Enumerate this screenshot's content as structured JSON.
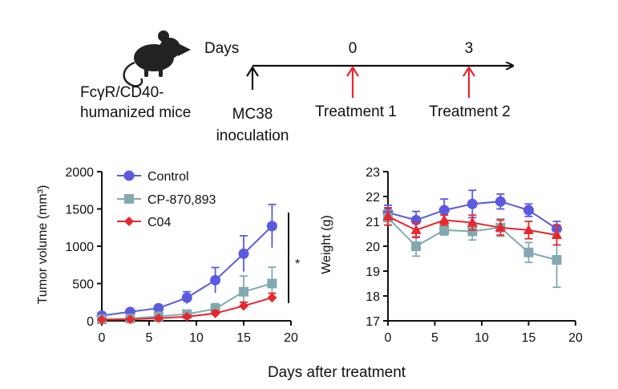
{
  "schematic": {
    "mouse_label_line1": "FcγR/CD40-",
    "mouse_label_line2": "humanized mice",
    "days_label": "Days",
    "day0": "0",
    "day3": "3",
    "inoculation_line1": "MC38",
    "inoculation_line2": "inoculation",
    "treatment1": "Treatment 1",
    "treatment2": "Treatment 2",
    "colors": {
      "black": "#111111",
      "red": "#e8262c"
    }
  },
  "shared_xlabel": "Days after treatment",
  "chart_data": [
    {
      "type": "line",
      "title": "",
      "xlabel": "",
      "ylabel": "Tumor volume (mm³)",
      "xlim": [
        0,
        20
      ],
      "ylim": [
        0,
        2000
      ],
      "xticks": [
        0,
        5,
        10,
        15,
        20
      ],
      "yticks": [
        0,
        500,
        1000,
        1500,
        2000
      ],
      "legend": "top-left",
      "x": [
        0,
        3,
        6,
        9,
        12,
        15,
        18
      ],
      "series": [
        {
          "name": "Control",
          "color": "#5a5ae0",
          "marker": "circle",
          "values": [
            70,
            120,
            170,
            310,
            545,
            900,
            1270
          ],
          "err": [
            20,
            30,
            40,
            80,
            170,
            240,
            290
          ]
        },
        {
          "name": "CP-870,893",
          "color": "#82a9b1",
          "marker": "square",
          "values": [
            20,
            30,
            60,
            90,
            160,
            390,
            500
          ],
          "err": [
            10,
            15,
            25,
            40,
            70,
            210,
            220
          ]
        },
        {
          "name": "C04",
          "color": "#e8262c",
          "marker": "diamond",
          "values": [
            15,
            20,
            35,
            55,
            100,
            200,
            310
          ],
          "err": [
            8,
            10,
            15,
            20,
            35,
            50,
            60
          ]
        }
      ],
      "significance": "*"
    },
    {
      "type": "line",
      "title": "",
      "xlabel": "",
      "ylabel": "Weight (g)",
      "xlim": [
        0,
        20
      ],
      "ylim": [
        17,
        23
      ],
      "xticks": [
        0,
        5,
        10,
        15,
        20
      ],
      "yticks": [
        17,
        18,
        19,
        20,
        21,
        22,
        23
      ],
      "x": [
        0,
        3,
        6,
        9,
        12,
        15,
        18
      ],
      "series": [
        {
          "name": "Control",
          "color": "#5a5ae0",
          "marker": "circle",
          "values": [
            21.35,
            21.05,
            21.45,
            21.7,
            21.8,
            21.45,
            20.7
          ],
          "err": [
            0.3,
            0.35,
            0.45,
            0.55,
            0.3,
            0.25,
            0.3
          ]
        },
        {
          "name": "CP-870,893",
          "color": "#82a9b1",
          "marker": "square",
          "values": [
            21.15,
            20.0,
            20.65,
            20.6,
            20.75,
            19.75,
            19.45
          ],
          "err": [
            0.3,
            0.4,
            0.2,
            0.35,
            0.35,
            0.4,
            1.1
          ]
        },
        {
          "name": "C04",
          "color": "#e8262c",
          "marker": "triangle",
          "values": [
            21.2,
            20.65,
            21.05,
            20.95,
            20.75,
            20.65,
            20.45
          ],
          "err": [
            0.35,
            0.3,
            0.2,
            0.3,
            0.3,
            0.35,
            0.4
          ]
        }
      ]
    }
  ]
}
